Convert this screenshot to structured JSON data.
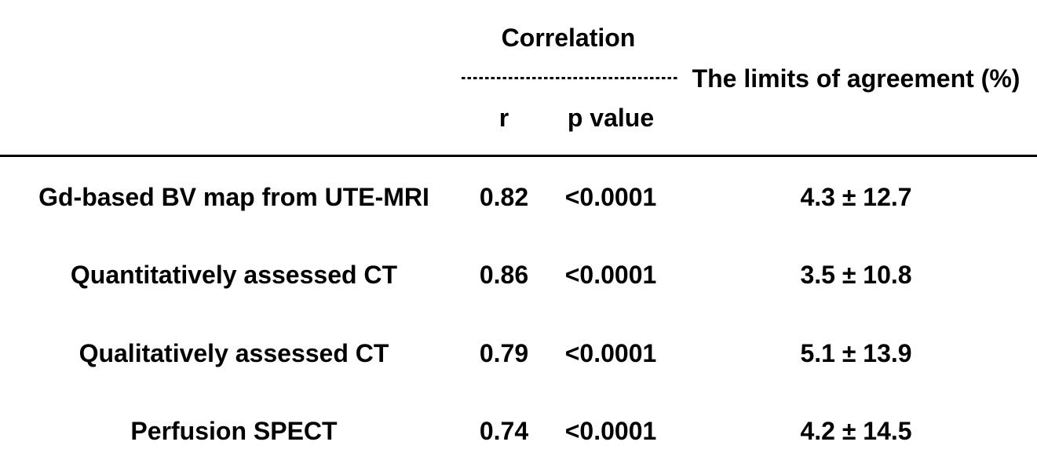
{
  "table": {
    "header": {
      "correlation_group": "Correlation",
      "limits_of_agreement": "The limits of agreement (%)",
      "r_col": "r",
      "p_col": "p value"
    },
    "rows": [
      {
        "label": "Gd-based BV map from UTE-MRI",
        "r": "0.82",
        "p": "<0.0001",
        "loa": "4.3 ± 12.7"
      },
      {
        "label": "Quantitatively assessed CT",
        "r": "0.86",
        "p": "<0.0001",
        "loa": "3.5 ± 10.8"
      },
      {
        "label": "Qualitatively assessed CT",
        "r": "0.79",
        "p": "<0.0001",
        "loa": "5.1 ± 13.9"
      },
      {
        "label": "Perfusion SPECT",
        "r": "0.74",
        "p": "<0.0001",
        "loa": "4.2 ± 14.5"
      }
    ],
    "colors": {
      "text": "#000000",
      "background": "#ffffff"
    }
  }
}
